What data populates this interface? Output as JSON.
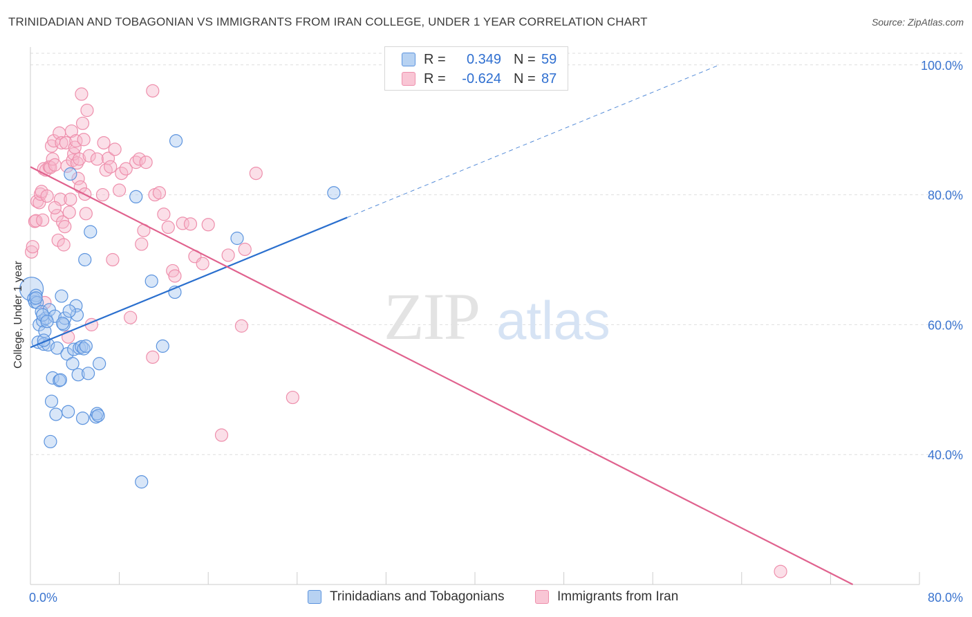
{
  "header": {
    "title": "TRINIDADIAN AND TOBAGONIAN VS IMMIGRANTS FROM IRAN COLLEGE, UNDER 1 YEAR CORRELATION CHART",
    "source": "Source: ZipAtlas.com"
  },
  "legend": {
    "series1": {
      "r_label": "R =",
      "r_value": "0.349",
      "n_label": "N =",
      "n_value": "59"
    },
    "series2": {
      "r_label": "R =",
      "r_value": "-0.624",
      "n_label": "N =",
      "n_value": "87"
    }
  },
  "watermark": {
    "zip": "ZIP",
    "atlas": "atlas"
  },
  "colors": {
    "blue_fill": "#a9c8f0",
    "blue_stroke": "#5b93de",
    "blue_line": "#2a6fce",
    "pink_fill": "#f7b9cc",
    "pink_stroke": "#ee8fac",
    "pink_line": "#e0628e",
    "grid": "#dedede",
    "axis_text": "#3a74cf"
  },
  "chart_data": {
    "type": "scatter",
    "title": "TRINIDADIAN AND TOBAGONIAN VS IMMIGRANTS FROM IRAN COLLEGE, UNDER 1 YEAR CORRELATION CHART",
    "xlabel": "",
    "ylabel": "College, Under 1 year",
    "xlim": [
      0,
      80
    ],
    "ylim": [
      20,
      102
    ],
    "x_tick_labels": [
      "0.0%",
      "80.0%"
    ],
    "y_ticks": [
      40,
      60,
      80,
      100
    ],
    "y_tick_labels": [
      "40.0%",
      "60.0%",
      "80.0%",
      "100.0%"
    ],
    "grid": true,
    "legend_position": "top-center",
    "series": [
      {
        "name": "Trinidadians and Tobagonians",
        "color": "#5b93de",
        "r": 0.349,
        "n": 59,
        "trend": {
          "x0": 0,
          "y0": 56.5,
          "x1": 28.5,
          "y1": 76.5,
          "x_dash_end": 62,
          "y_dash_end": 100
        },
        "points": [
          [
            0.1,
            65.5
          ],
          [
            0.3,
            64
          ],
          [
            0.4,
            63.5
          ],
          [
            0.5,
            64.5
          ],
          [
            0.6,
            63.4
          ],
          [
            0.7,
            57.3
          ],
          [
            0.8,
            60
          ],
          [
            1,
            62
          ],
          [
            1.1,
            60.6
          ],
          [
            1.2,
            57
          ],
          [
            1.3,
            59
          ],
          [
            1.4,
            61
          ],
          [
            1.6,
            56.9
          ],
          [
            1.7,
            62.3
          ],
          [
            1.8,
            42
          ],
          [
            1.9,
            48.2
          ],
          [
            2,
            51.8
          ],
          [
            2.2,
            61.3
          ],
          [
            2.3,
            46.2
          ],
          [
            2.4,
            56.4
          ],
          [
            2.6,
            51.4
          ],
          [
            2.7,
            51.5
          ],
          [
            2.8,
            64.4
          ],
          [
            3,
            60
          ],
          [
            3.1,
            61
          ],
          [
            3.3,
            55.5
          ],
          [
            3.4,
            46.6
          ],
          [
            3.6,
            83.2
          ],
          [
            3.8,
            54
          ],
          [
            3.9,
            56.2
          ],
          [
            4.1,
            62.9
          ],
          [
            4.2,
            61.5
          ],
          [
            4.3,
            52.3
          ],
          [
            4.4,
            56.4
          ],
          [
            4.6,
            56.6
          ],
          [
            4.7,
            45.6
          ],
          [
            4.8,
            56.3
          ],
          [
            4.9,
            70
          ],
          [
            5,
            56.7
          ],
          [
            5.2,
            52.5
          ],
          [
            5.4,
            74.3
          ],
          [
            5.9,
            45.8
          ],
          [
            6,
            46.3
          ],
          [
            6.2,
            54
          ],
          [
            0.5,
            64.1
          ],
          [
            1.1,
            61.5
          ],
          [
            3.5,
            62.1
          ],
          [
            1.5,
            60.5
          ],
          [
            2.9,
            60.2
          ],
          [
            6.1,
            46
          ],
          [
            9.5,
            79.7
          ],
          [
            10,
            35.8
          ],
          [
            10.9,
            66.7
          ],
          [
            11.9,
            56.7
          ],
          [
            13,
            65
          ],
          [
            13.1,
            88.3
          ],
          [
            18.6,
            73.3
          ],
          [
            27.3,
            80.3
          ],
          [
            1.2,
            57.6
          ]
        ]
      },
      {
        "name": "Immigrants from Iran",
        "color": "#ee8fac",
        "r": -0.624,
        "n": 87,
        "trend": {
          "x0": 0,
          "y0": 84.3,
          "x1": 74,
          "y1": 20
        },
        "points": [
          [
            0.1,
            71.2
          ],
          [
            0.2,
            72
          ],
          [
            0.4,
            75.9
          ],
          [
            0.5,
            76
          ],
          [
            0.6,
            79
          ],
          [
            0.8,
            78.8
          ],
          [
            0.9,
            80.1
          ],
          [
            1,
            80.5
          ],
          [
            1.1,
            76.1
          ],
          [
            1.2,
            84
          ],
          [
            1.3,
            63.4
          ],
          [
            1.4,
            83.8
          ],
          [
            1.5,
            79.8
          ],
          [
            1.7,
            84.3
          ],
          [
            1.8,
            84.2
          ],
          [
            1.9,
            87.5
          ],
          [
            2,
            85.5
          ],
          [
            2.1,
            88.3
          ],
          [
            2.2,
            84.6
          ],
          [
            2.4,
            76.8
          ],
          [
            2.5,
            73
          ],
          [
            2.6,
            89.5
          ],
          [
            2.7,
            79.3
          ],
          [
            2.8,
            88
          ],
          [
            2.9,
            75.8
          ],
          [
            3,
            72.3
          ],
          [
            3.1,
            75.1
          ],
          [
            3.2,
            88
          ],
          [
            3.3,
            84.4
          ],
          [
            3.4,
            58.1
          ],
          [
            3.5,
            77.3
          ],
          [
            3.6,
            79.3
          ],
          [
            3.7,
            89.8
          ],
          [
            3.8,
            85.3
          ],
          [
            3.9,
            86.3
          ],
          [
            4,
            87.3
          ],
          [
            4.1,
            88.3
          ],
          [
            4.2,
            84.9
          ],
          [
            4.3,
            82.5
          ],
          [
            4.4,
            85.5
          ],
          [
            4.5,
            81.2
          ],
          [
            4.6,
            95.5
          ],
          [
            4.7,
            91
          ],
          [
            4.8,
            88.5
          ],
          [
            4.9,
            80.1
          ],
          [
            5,
            77.1
          ],
          [
            5.1,
            93
          ],
          [
            5.3,
            86
          ],
          [
            5.5,
            60
          ],
          [
            6,
            85.5
          ],
          [
            6.5,
            80
          ],
          [
            6.6,
            88
          ],
          [
            6.8,
            83.8
          ],
          [
            7,
            85.6
          ],
          [
            7.2,
            84.3
          ],
          [
            7.4,
            70
          ],
          [
            7.6,
            87
          ],
          [
            8,
            80.7
          ],
          [
            8.2,
            83.3
          ],
          [
            8.6,
            84
          ],
          [
            9,
            61.1
          ],
          [
            9.5,
            85
          ],
          [
            9.8,
            85.5
          ],
          [
            10,
            72.4
          ],
          [
            10.2,
            74.5
          ],
          [
            10.4,
            85
          ],
          [
            11,
            55
          ],
          [
            11.2,
            80
          ],
          [
            11.6,
            80.3
          ],
          [
            12,
            77
          ],
          [
            12.4,
            75
          ],
          [
            12.8,
            68.3
          ],
          [
            13,
            67.5
          ],
          [
            13.7,
            75.6
          ],
          [
            14.4,
            75.5
          ],
          [
            14.8,
            70.5
          ],
          [
            15.5,
            69.4
          ],
          [
            16,
            75.4
          ],
          [
            17.8,
            70.7
          ],
          [
            17.2,
            43
          ],
          [
            19.3,
            71.6
          ],
          [
            19,
            59.8
          ],
          [
            20.3,
            83.3
          ],
          [
            23.6,
            48.8
          ],
          [
            11,
            96
          ],
          [
            2.2,
            78
          ],
          [
            67.5,
            22
          ]
        ]
      }
    ]
  },
  "bottom_legend": {
    "series1_label": "Trinidadians and Tobagonians",
    "series2_label": "Immigrants from Iran"
  }
}
